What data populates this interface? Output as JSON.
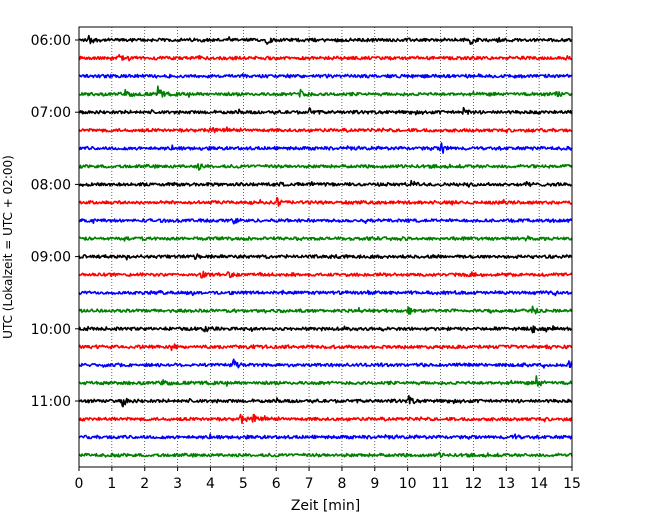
{
  "chart_data": {
    "type": "line",
    "title": "",
    "xlabel": "Zeit  [min]",
    "ylabel": "UTC (Lokalzeit = UTC + 02:00)",
    "xlim": [
      0,
      15
    ],
    "x_ticks": [
      "0",
      "1",
      "2",
      "3",
      "4",
      "5",
      "6",
      "7",
      "8",
      "9",
      "10",
      "11",
      "12",
      "13",
      "14",
      "15"
    ],
    "y_tick_labels": [
      "06:00",
      "07:00",
      "08:00",
      "09:00",
      "10:00",
      "11:00"
    ],
    "y_tick_trace_index": [
      0,
      4,
      8,
      12,
      16,
      20
    ],
    "grid_x": true,
    "trace_interval_min": 15,
    "colors": [
      "#000000",
      "#ff0000",
      "#0000ff",
      "#008000"
    ],
    "traces": [
      {
        "start": "06:00",
        "color": "#000000",
        "events": [
          {
            "t": 0.3,
            "amp": 0.35
          },
          {
            "t": 5.7,
            "amp": 0.3
          },
          {
            "t": 11.9,
            "amp": 0.35
          }
        ]
      },
      {
        "start": "06:15",
        "color": "#ff0000",
        "events": [
          {
            "t": 1.2,
            "amp": 0.25
          }
        ]
      },
      {
        "start": "06:30",
        "color": "#0000ff",
        "events": []
      },
      {
        "start": "06:45",
        "color": "#008000",
        "events": [
          {
            "t": 1.4,
            "amp": 0.4
          },
          {
            "t": 2.4,
            "amp": 0.6
          },
          {
            "t": 6.7,
            "amp": 0.8
          },
          {
            "t": 14.5,
            "amp": 0.35
          }
        ]
      },
      {
        "start": "07:00",
        "color": "#000000",
        "events": [
          {
            "t": 7.0,
            "amp": 0.3
          },
          {
            "t": 11.7,
            "amp": 0.3
          }
        ]
      },
      {
        "start": "07:15",
        "color": "#ff0000",
        "events": [
          {
            "t": 4.0,
            "amp": 0.2
          }
        ]
      },
      {
        "start": "07:30",
        "color": "#0000ff",
        "events": [
          {
            "t": 11.0,
            "amp": 0.65
          }
        ]
      },
      {
        "start": "07:45",
        "color": "#008000",
        "events": [
          {
            "t": 3.6,
            "amp": 0.3
          }
        ]
      },
      {
        "start": "08:00",
        "color": "#000000",
        "events": [
          {
            "t": 10.1,
            "amp": 0.35
          },
          {
            "t": 13.6,
            "amp": 0.3
          }
        ]
      },
      {
        "start": "08:15",
        "color": "#ff0000",
        "events": [
          {
            "t": 6.0,
            "amp": 0.45
          }
        ]
      },
      {
        "start": "08:30",
        "color": "#0000ff",
        "events": [
          {
            "t": 4.7,
            "amp": 0.4
          }
        ]
      },
      {
        "start": "08:45",
        "color": "#008000",
        "events": [
          {
            "t": 13.6,
            "amp": 0.3
          }
        ]
      },
      {
        "start": "09:00",
        "color": "#000000",
        "events": [
          {
            "t": 3.5,
            "amp": 0.2
          }
        ]
      },
      {
        "start": "09:15",
        "color": "#ff0000",
        "events": [
          {
            "t": 3.7,
            "amp": 0.4
          },
          {
            "t": 4.5,
            "amp": 0.3
          }
        ]
      },
      {
        "start": "09:30",
        "color": "#0000ff",
        "events": []
      },
      {
        "start": "09:45",
        "color": "#008000",
        "events": [
          {
            "t": 10.0,
            "amp": 0.35
          },
          {
            "t": 13.8,
            "amp": 0.25
          }
        ]
      },
      {
        "start": "10:00",
        "color": "#000000",
        "events": [
          {
            "t": 3.8,
            "amp": 0.35
          },
          {
            "t": 13.8,
            "amp": 0.25
          }
        ]
      },
      {
        "start": "10:15",
        "color": "#ff0000",
        "events": [
          {
            "t": 2.8,
            "amp": 0.2
          }
        ]
      },
      {
        "start": "10:30",
        "color": "#0000ff",
        "events": [
          {
            "t": 4.7,
            "amp": 0.5
          },
          {
            "t": 14.9,
            "amp": 0.35
          }
        ]
      },
      {
        "start": "10:45",
        "color": "#008000",
        "events": [
          {
            "t": 2.5,
            "amp": 0.45
          },
          {
            "t": 13.9,
            "amp": 0.6
          }
        ]
      },
      {
        "start": "11:00",
        "color": "#000000",
        "events": [
          {
            "t": 1.3,
            "amp": 0.6
          },
          {
            "t": 10.0,
            "amp": 0.55
          }
        ]
      },
      {
        "start": "11:15",
        "color": "#ff0000",
        "events": [
          {
            "t": 4.9,
            "amp": 0.45
          },
          {
            "t": 5.3,
            "amp": 0.35
          }
        ]
      },
      {
        "start": "11:30",
        "color": "#0000ff",
        "events": [
          {
            "t": 13.2,
            "amp": 0.25
          }
        ]
      },
      {
        "start": "11:45",
        "color": "#008000",
        "events": [
          {
            "t": 10.9,
            "amp": 0.2
          }
        ]
      }
    ]
  }
}
